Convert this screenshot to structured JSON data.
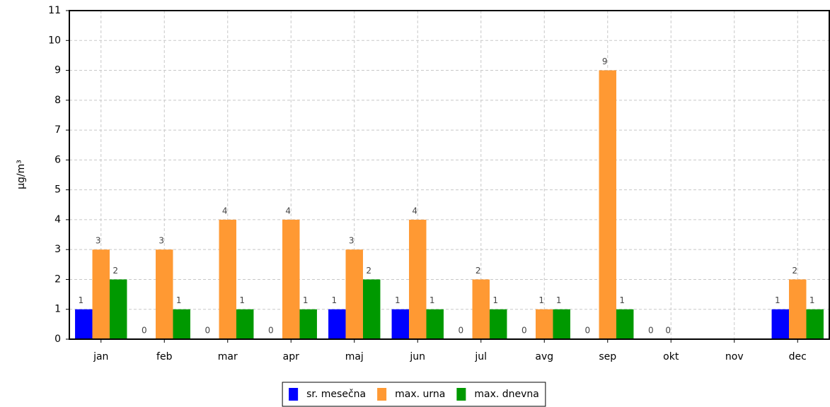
{
  "chart_data": {
    "type": "bar",
    "y_label": "µg/m³",
    "categories": [
      "jan",
      "feb",
      "mar",
      "apr",
      "maj",
      "jun",
      "jul",
      "avg",
      "sep",
      "okt",
      "nov",
      "dec"
    ],
    "series": [
      {
        "name": "sr. mesečna",
        "color": "#0000ff",
        "values": [
          1,
          0,
          0,
          0,
          1,
          1,
          0,
          0,
          0,
          0,
          null,
          1
        ]
      },
      {
        "name": "max. urna",
        "color": "#ff9933",
        "values": [
          3,
          3,
          4,
          4,
          3,
          4,
          2,
          1,
          9,
          0,
          null,
          2
        ]
      },
      {
        "name": "max. dnevna",
        "color": "#009900",
        "values": [
          2,
          1,
          1,
          1,
          2,
          1,
          1,
          1,
          1,
          null,
          null,
          1
        ]
      }
    ],
    "ylim": [
      0,
      11
    ],
    "yticks": [
      0,
      1,
      2,
      3,
      4,
      5,
      6,
      7,
      8,
      9,
      10,
      11
    ],
    "grid": true
  }
}
